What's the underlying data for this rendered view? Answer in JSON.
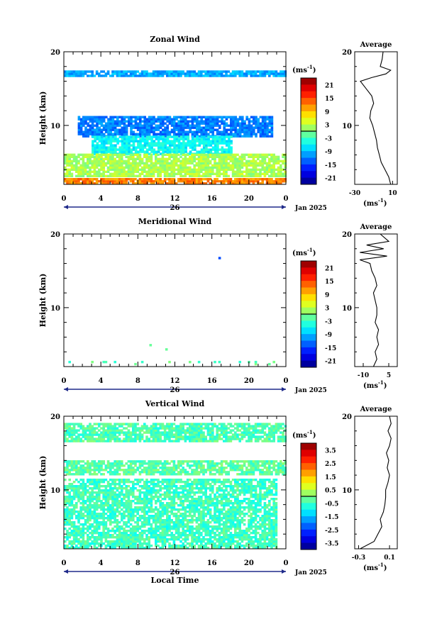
{
  "chart_data": [
    {
      "type": "heatmap",
      "title": "Zonal Wind",
      "ylabel": "Height (km)",
      "xlabel": "",
      "ylim": [
        2,
        20
      ],
      "xlim": [
        0,
        24
      ],
      "y_ticks": [
        "10",
        "20"
      ],
      "x_ticks": [
        "0",
        "4",
        "8",
        "12",
        "16",
        "20",
        "0"
      ],
      "date_day": "26",
      "date_month": "Jan 2025",
      "colorbar": {
        "unit": "(ms",
        "unit_exp": "-1",
        "unit_close": ")",
        "ticks": [
          "21",
          "15",
          "9",
          "3",
          "-3",
          "-9",
          "-15",
          "-21"
        ],
        "range": [
          -24,
          24
        ]
      },
      "layers": [
        {
          "y": [
            16.6,
            17.3
          ],
          "x": [
            0,
            24
          ],
          "v": -10
        },
        {
          "y": [
            8.4,
            11.0
          ],
          "x": [
            1.5,
            22.5
          ],
          "v": -12
        },
        {
          "y": [
            6.0,
            8.4
          ],
          "x": [
            3,
            18
          ],
          "v": -6
        },
        {
          "y": [
            3.0,
            6.0
          ],
          "x": [
            0,
            24
          ],
          "v": 2
        },
        {
          "y": [
            2.0,
            2.6
          ],
          "x": [
            0,
            24
          ],
          "v": 12
        }
      ],
      "average": {
        "title": "Average",
        "xlim": [
          -30,
          15
        ],
        "x_ticks": [
          "-30",
          "10"
        ],
        "unit": "(ms",
        "unit_exp": "-1",
        "unit_close": ")",
        "heights": [
          2,
          3,
          4,
          5,
          6,
          7,
          8,
          9,
          10,
          11,
          12,
          13,
          14,
          15,
          16,
          16.5,
          17,
          17.5,
          18,
          19,
          20
        ],
        "values": [
          8,
          6,
          2,
          -2,
          -4,
          -6,
          -7,
          -9,
          -11,
          -14,
          -13,
          -10,
          -12,
          -18,
          -24,
          -12,
          3,
          8,
          -3,
          -1,
          0
        ]
      }
    },
    {
      "type": "heatmap",
      "title": "Meridional Wind",
      "ylabel": "Height (km)",
      "xlabel": "",
      "ylim": [
        2,
        20
      ],
      "xlim": [
        0,
        24
      ],
      "y_ticks": [
        "10",
        "20"
      ],
      "x_ticks": [
        "0",
        "4",
        "8",
        "12",
        "16",
        "20",
        "0"
      ],
      "date_day": "26",
      "date_month": "Jan 2025",
      "colorbar": {
        "unit": "(ms",
        "unit_exp": "-1",
        "unit_close": ")",
        "ticks": [
          "21",
          "15",
          "9",
          "3",
          "-3",
          "-9",
          "-15",
          "-21"
        ],
        "range": [
          -24,
          24
        ]
      },
      "layers": [
        {
          "y": [
            16.6,
            17.0
          ],
          "x": [
            14,
            21
          ],
          "v": -14
        },
        {
          "y": [
            4.2,
            5.0
          ],
          "x": [
            8.5,
            11
          ],
          "v": 0
        },
        {
          "y": [
            2.2,
            2.6
          ],
          "x": [
            0,
            23
          ],
          "v": -2
        }
      ],
      "average": {
        "title": "Average",
        "xlim": [
          -15,
          10
        ],
        "x_ticks": [
          "-10",
          "5"
        ],
        "unit": "(ms",
        "unit_exp": "-1",
        "unit_close": ")",
        "heights": [
          2,
          3,
          4,
          5,
          6,
          7,
          8,
          9,
          10,
          11,
          12,
          13,
          14,
          15,
          16,
          16.5,
          17,
          17.5,
          18,
          18.5,
          19,
          20
        ],
        "values": [
          -4,
          -2,
          -3,
          -1,
          -2,
          -1,
          -3,
          -2,
          -2,
          -3,
          -4,
          -2,
          -3,
          -5,
          -6,
          -12,
          4,
          -12,
          2,
          -8,
          5,
          0
        ]
      }
    },
    {
      "type": "heatmap",
      "title": "Vertical Wind",
      "ylabel": "Height (km)",
      "xlabel": "Local Time",
      "ylim": [
        2,
        20
      ],
      "xlim": [
        0,
        24
      ],
      "y_ticks": [
        "10",
        "20"
      ],
      "x_ticks": [
        "0",
        "4",
        "8",
        "12",
        "16",
        "20",
        "0"
      ],
      "date_day": "26",
      "date_month": "Jan 2025",
      "colorbar": {
        "unit": "(ms",
        "unit_exp": "-1",
        "unit_close": ")",
        "ticks": [
          "3.5",
          "2.5",
          "1.5",
          "0.5",
          "-0.5",
          "-1.5",
          "-2.5",
          "-3.5"
        ],
        "range": [
          -4,
          4
        ]
      },
      "layers": [
        {
          "y": [
            16.5,
            19.0
          ],
          "x": [
            0,
            24
          ],
          "v": -0.4
        },
        {
          "y": [
            12.0,
            14.0
          ],
          "x": [
            0,
            24
          ],
          "v": -0.3
        },
        {
          "y": [
            2.0,
            11.5
          ],
          "x": [
            0,
            23
          ],
          "v": -0.5
        }
      ],
      "average": {
        "title": "Average",
        "xlim": [
          -0.35,
          0.2
        ],
        "x_ticks": [
          "-0.3",
          "0.1"
        ],
        "unit": "(ms",
        "unit_exp": "-1",
        "unit_close": ")",
        "heights": [
          2,
          3,
          4,
          5,
          6,
          7,
          8,
          9,
          10,
          11,
          12,
          13,
          14,
          15,
          16,
          17,
          18,
          19,
          20
        ],
        "values": [
          -0.28,
          -0.1,
          -0.05,
          0.0,
          -0.02,
          0.02,
          0.04,
          0.05,
          0.05,
          0.08,
          0.1,
          0.07,
          0.09,
          0.06,
          0.1,
          0.12,
          0.08,
          0.12,
          0.1
        ]
      }
    }
  ]
}
